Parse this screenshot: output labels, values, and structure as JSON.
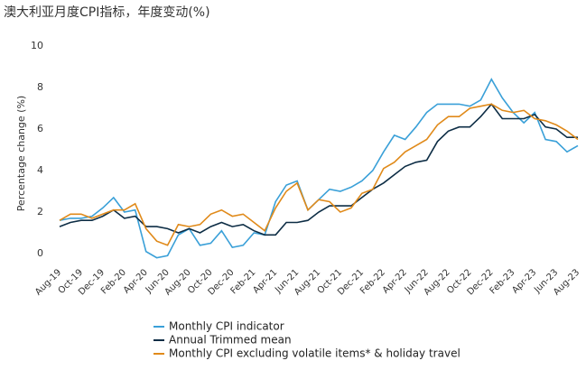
{
  "chart_data": {
    "type": "line",
    "title": "澳大利亚月度CPI指标，年度变动(%)",
    "y_label": "Percentage change (%)",
    "categories": [
      "Aug-19",
      null,
      "Oct-19",
      null,
      "Dec-19",
      null,
      "Feb-20",
      null,
      "Apr-20",
      null,
      "Jun-20",
      null,
      "Aug-20",
      null,
      "Oct-20",
      null,
      "Dec-20",
      null,
      "Feb-21",
      null,
      "Apr-21",
      null,
      "Jun-21",
      null,
      "Aug-21",
      null,
      "Oct-21",
      null,
      "Dec-21",
      null,
      "Feb-22",
      null,
      "Apr-22",
      null,
      "Jun-22",
      null,
      "Aug-22",
      null,
      "Oct-22",
      null,
      "Dec-22",
      null,
      "Feb-23",
      null,
      "Apr-23",
      null,
      "Jun-23",
      null,
      "Aug-23"
    ],
    "series": [
      {
        "name": "Monthly CPI indicator",
        "color": "#3aa0d8",
        "values": [
          1.6,
          1.7,
          1.7,
          1.8,
          2.2,
          2.7,
          2.0,
          2.1,
          0.1,
          -0.2,
          -0.1,
          0.9,
          1.2,
          0.4,
          0.5,
          1.1,
          0.3,
          0.4,
          1.0,
          0.9,
          2.5,
          3.3,
          3.5,
          2.1,
          2.6,
          3.1,
          3.0,
          3.2,
          3.5,
          4.0,
          4.9,
          5.7,
          5.5,
          6.1,
          6.8,
          7.2,
          7.2,
          7.2,
          7.1,
          7.4,
          8.4,
          7.5,
          6.8,
          6.3,
          6.8,
          5.5,
          5.4,
          4.9,
          5.2
        ]
      },
      {
        "name": "Annual Trimmed mean",
        "color": "#0d2d45",
        "values": [
          1.3,
          1.5,
          1.6,
          1.6,
          1.8,
          2.1,
          1.7,
          1.8,
          1.3,
          1.3,
          1.2,
          1.0,
          1.2,
          1.0,
          1.3,
          1.5,
          1.3,
          1.4,
          1.1,
          0.9,
          0.9,
          1.5,
          1.5,
          1.6,
          2.0,
          2.3,
          2.3,
          2.3,
          2.7,
          3.1,
          3.4,
          3.8,
          4.2,
          4.4,
          4.5,
          5.4,
          5.9,
          6.1,
          6.1,
          6.6,
          7.2,
          6.5,
          6.5,
          6.5,
          6.7,
          6.1,
          6.0,
          5.6,
          5.6
        ]
      },
      {
        "name": "Monthly CPI excluding volatile items* & holiday travel",
        "color": "#e08a1a",
        "values": [
          1.6,
          1.9,
          1.9,
          1.7,
          1.9,
          2.1,
          2.1,
          2.4,
          1.2,
          0.6,
          0.4,
          1.4,
          1.3,
          1.4,
          1.9,
          2.1,
          1.8,
          1.9,
          1.5,
          1.1,
          2.2,
          3.0,
          3.4,
          2.1,
          2.6,
          2.5,
          2.0,
          2.2,
          2.9,
          3.1,
          4.1,
          4.4,
          4.9,
          5.2,
          5.5,
          6.2,
          6.6,
          6.6,
          7.0,
          7.1,
          7.2,
          6.9,
          6.8,
          6.9,
          6.5,
          6.4,
          6.2,
          5.9,
          5.5
        ]
      }
    ],
    "ylim": [
      0,
      10
    ],
    "yticks": [
      0,
      2,
      4,
      6,
      8,
      10
    ],
    "grid": false
  }
}
